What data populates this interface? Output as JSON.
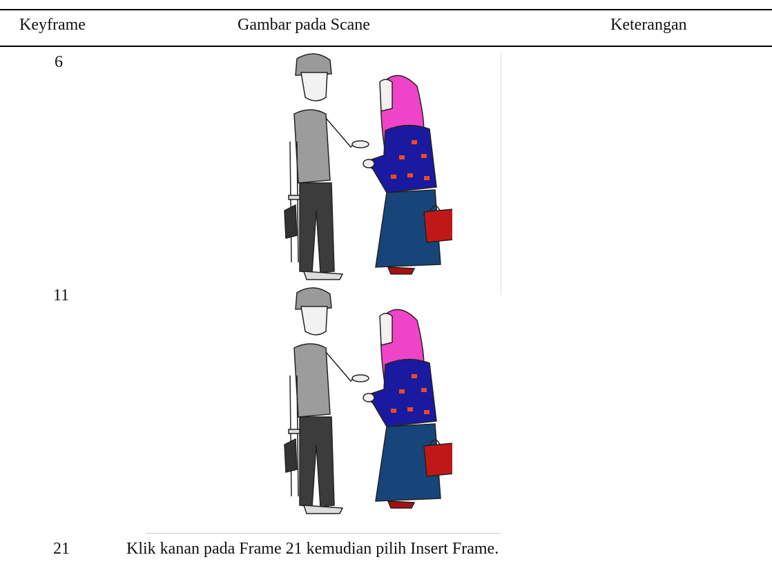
{
  "table": {
    "header": [
      "Keyframe",
      "Gambar pada Scane",
      "Keterangan"
    ],
    "rows": [
      {
        "keyframe": "6"
      },
      {
        "keyframe": "11"
      },
      {
        "keyframe": "21",
        "description": "Klik kanan pada Frame 21 kemudian pilih Insert Frame."
      }
    ]
  }
}
